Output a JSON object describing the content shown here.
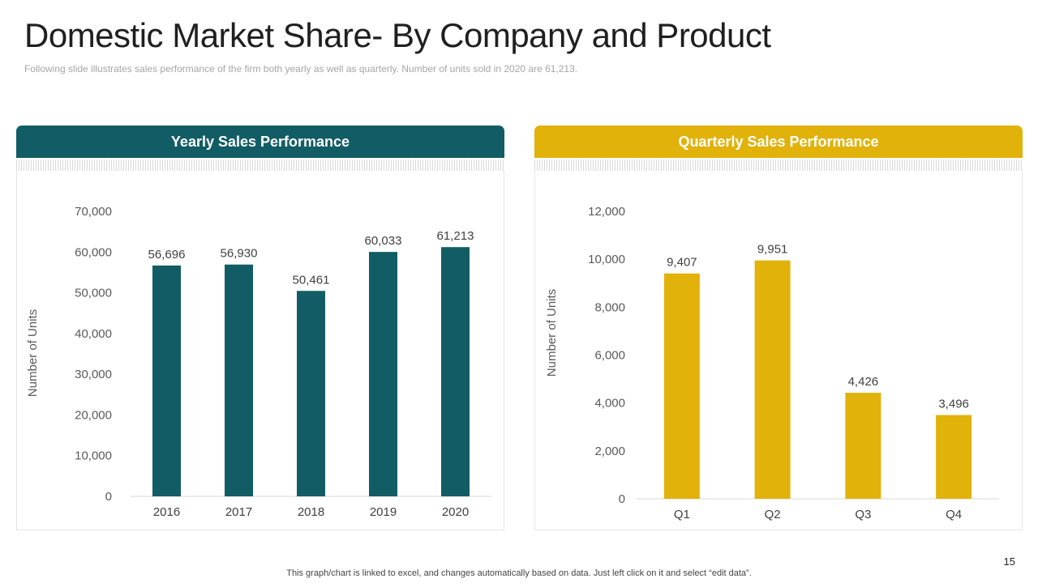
{
  "slide": {
    "title": "Domestic Market Share- By Company and Product",
    "subtitle": "Following slide illustrates sales performance  of the firm both yearly as well as quarterly. Number of units sold in 2020 are 61,213.",
    "footer": "This graph/chart is linked to excel,  and changes automatically based on data. Just left click on it and select “edit data”.",
    "page_number": "15"
  },
  "panels": [
    {
      "header": "Yearly Sales Performance",
      "color": "#125d65"
    },
    {
      "header": "Quarterly Sales Performance",
      "color": "#e1b20a"
    }
  ],
  "chart_data": [
    {
      "type": "bar",
      "title": "Yearly Sales Performance",
      "categories": [
        "2016",
        "2017",
        "2018",
        "2019",
        "2020"
      ],
      "values": [
        56696,
        56930,
        50461,
        60033,
        61213
      ],
      "value_labels": [
        "56,696",
        "56,930",
        "50,461",
        "60,033",
        "61,213"
      ],
      "ylabel": "Number of Units",
      "ylim": [
        0,
        70000
      ],
      "yticks": [
        0,
        10000,
        20000,
        30000,
        40000,
        50000,
        60000,
        70000
      ],
      "ytick_labels": [
        "0",
        "10,000",
        "20,000",
        "30,000",
        "40,000",
        "50,000",
        "60,000",
        "70,000"
      ],
      "grid": false,
      "bar_color": "#125d65"
    },
    {
      "type": "bar",
      "title": "Quarterly Sales Performance",
      "categories": [
        "Q1",
        "Q2",
        "Q3",
        "Q4"
      ],
      "values": [
        9407,
        9951,
        4426,
        3496
      ],
      "value_labels": [
        "9,407",
        "9,951",
        "4,426",
        "3,496"
      ],
      "ylabel": "Number of Units",
      "ylim": [
        0,
        12000
      ],
      "yticks": [
        0,
        2000,
        4000,
        6000,
        8000,
        10000,
        12000
      ],
      "ytick_labels": [
        "0",
        "2,000",
        "4,000",
        "6,000",
        "8,000",
        "10,000",
        "12,000"
      ],
      "grid": false,
      "bar_color": "#e1b20a"
    }
  ]
}
